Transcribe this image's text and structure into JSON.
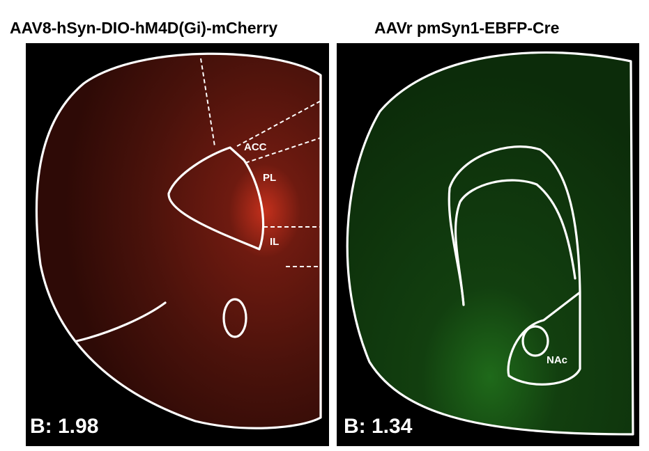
{
  "panels": [
    {
      "title": "AAV8-hSyn-DIO-hM4D(Gi)-mCherry",
      "regions": [
        "ACC",
        "PL",
        "IL"
      ],
      "score": "B: 1.98"
    },
    {
      "title": "AAVr pmSyn1-EBFP-Cre",
      "regions": [
        "NAc"
      ],
      "score": "B: 1.34"
    }
  ]
}
